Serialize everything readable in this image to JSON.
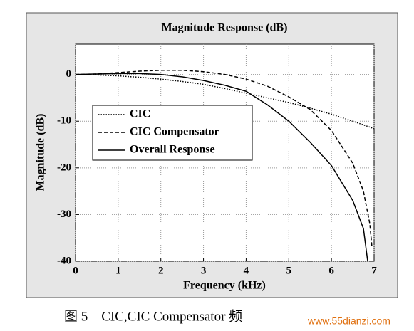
{
  "chart_data": {
    "type": "line",
    "title": "Magnitude Response (dB)",
    "x_label": "Frequency (kHz)",
    "y_label": "Magnitude (dB)",
    "xlim": [
      0,
      7
    ],
    "xticks": [
      0,
      1,
      2,
      3,
      4,
      5,
      6,
      7
    ],
    "ylim": [
      -40,
      6.5
    ],
    "yticks": [
      0,
      -10,
      -20,
      -30,
      -40
    ],
    "grid": true,
    "legend": "center left",
    "series": [
      {
        "name": "CIC",
        "color": "#000000",
        "dash": "dotted",
        "x": [
          0,
          0.5,
          1,
          1.5,
          2,
          2.5,
          3,
          3.5,
          4,
          4.5,
          5,
          5.5,
          6,
          6.5,
          7
        ],
        "values": [
          0,
          -0.1,
          -0.3,
          -0.6,
          -1.0,
          -1.5,
          -2.1,
          -3.0,
          -4.0,
          -5.0,
          -6.0,
          -7.2,
          -8.5,
          -10.0,
          -11.6
        ]
      },
      {
        "name": "CIC Compensator",
        "color": "#000000",
        "dash": "dashed",
        "x": [
          0,
          0.5,
          1,
          1.5,
          2,
          2.5,
          3,
          3.5,
          4,
          4.5,
          5,
          5.5,
          6,
          6.5,
          6.75,
          6.9,
          6.95
        ],
        "values": [
          0,
          0.1,
          0.4,
          0.7,
          0.9,
          0.9,
          0.6,
          0,
          -1.0,
          -2.5,
          -4.8,
          -7.5,
          -12,
          -19,
          -25,
          -32,
          -37
        ]
      },
      {
        "name": "Overall Response",
        "color": "#000000",
        "dash": "solid",
        "x": [
          0,
          0.5,
          1,
          1.5,
          2,
          2.5,
          3,
          3.5,
          4,
          4.5,
          5,
          5.5,
          6,
          6.5,
          6.75,
          6.85
        ],
        "values": [
          0,
          0.1,
          0.2,
          0.2,
          0,
          -0.5,
          -1.3,
          -2.3,
          -3.6,
          -6.5,
          -10,
          -14.5,
          -19.5,
          -27,
          -33,
          -40
        ]
      }
    ]
  },
  "caption": "图 5　CIC,CIC Compensator 频",
  "watermark": "www.55dianzi.com"
}
